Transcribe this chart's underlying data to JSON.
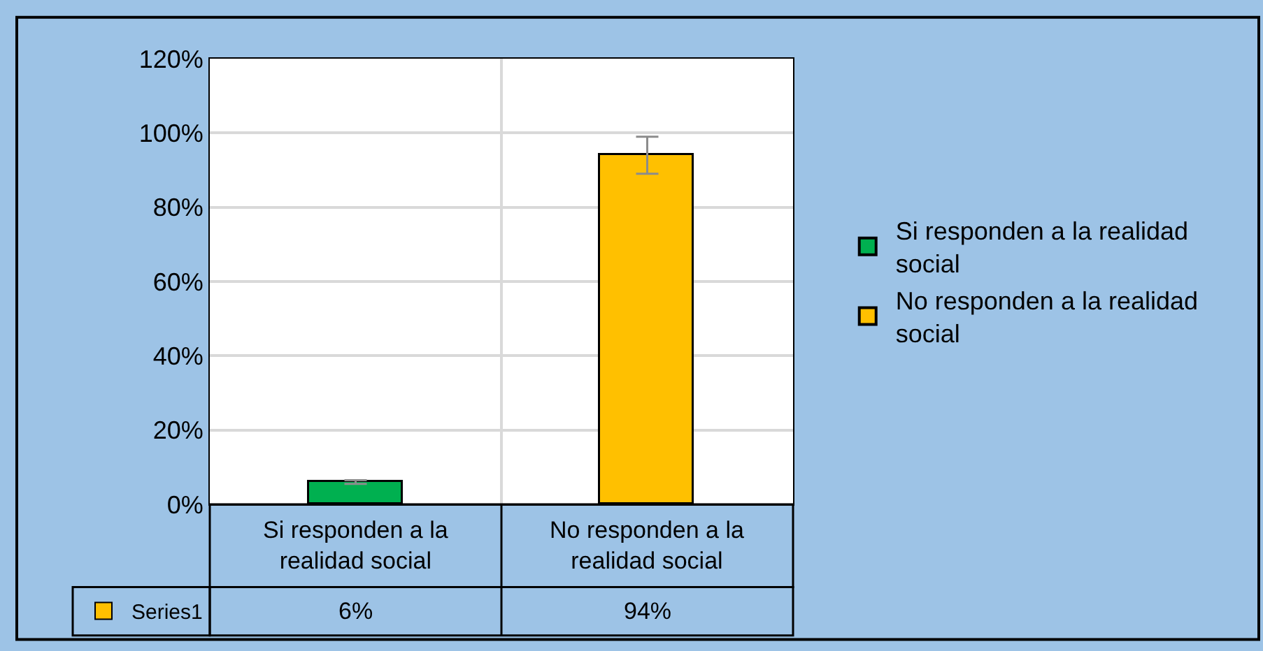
{
  "chart_data": {
    "type": "bar",
    "categories": [
      "Si responden a la realidad social",
      "No responden a la realidad social"
    ],
    "series": [
      {
        "name": "Series1",
        "color": "#ffc000",
        "colors": [
          "#00b050",
          "#ffc000"
        ],
        "values": [
          6,
          94
        ],
        "errors": [
          0.5,
          5
        ]
      }
    ],
    "ylim": [
      0,
      120
    ],
    "yticks": [
      {
        "value": 0,
        "label": "0%"
      },
      {
        "value": 20,
        "label": "20%"
      },
      {
        "value": 40,
        "label": "40%"
      },
      {
        "value": 60,
        "label": "60%"
      },
      {
        "value": 80,
        "label": "80%"
      },
      {
        "value": 100,
        "label": "100%"
      },
      {
        "value": 120,
        "label": "120%"
      }
    ],
    "value_labels": [
      "6%",
      "94%"
    ],
    "grid": true,
    "legend": "bottom left"
  }
}
